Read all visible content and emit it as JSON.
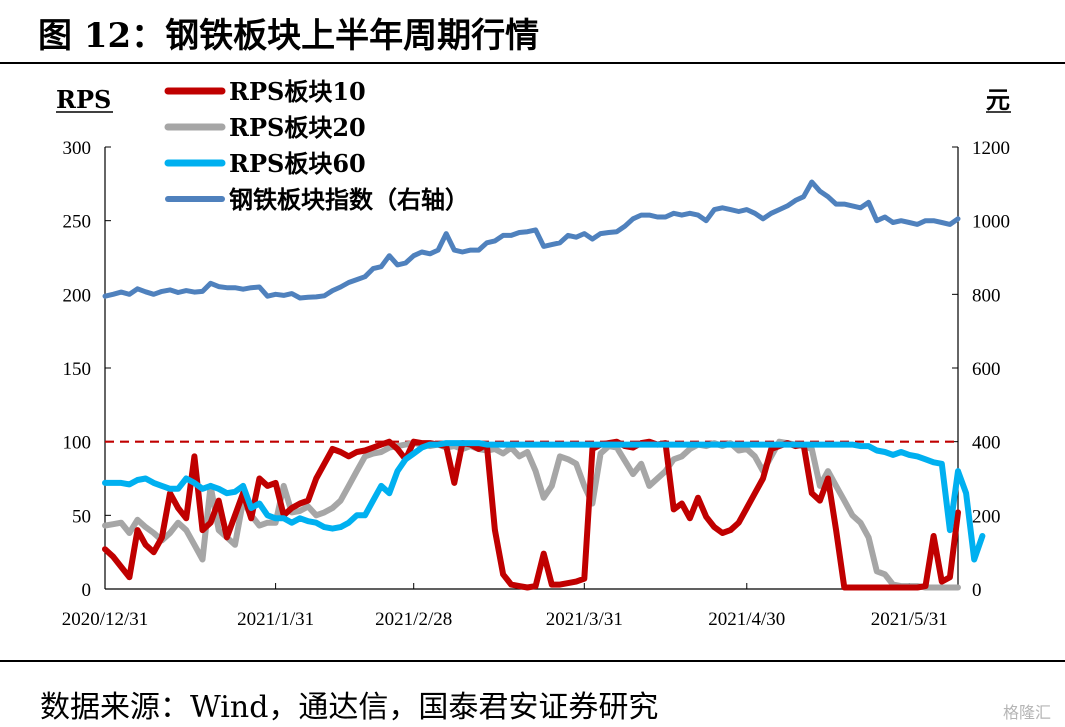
{
  "figure_title": "图 12：钢铁板块上半年周期行情",
  "source_note": "数据来源：Wind，通达信，国泰君安证券研究",
  "watermark": "格隆汇",
  "chart_data": {
    "type": "line",
    "title": "图 12：钢铁板块上半年周期行情",
    "left_axis_unit": "RPS",
    "right_axis_unit": "元",
    "left_ylim": [
      0,
      300
    ],
    "right_ylim": [
      0,
      1200
    ],
    "left_ticks": [
      "0",
      "50",
      "100",
      "150",
      "200",
      "250",
      "300"
    ],
    "right_ticks": [
      "0",
      "200",
      "400",
      "600",
      "800",
      "1000",
      "1200"
    ],
    "x_ticks": [
      "2020/12/31",
      "2021/1/31",
      "2021/2/28",
      "2021/3/31",
      "2021/4/30",
      "2021/5/31"
    ],
    "x_tick_index": [
      0,
      21,
      38,
      59,
      79,
      99
    ],
    "n_points": 106,
    "reference_line": {
      "value": 100,
      "axis": "left",
      "color": "#c00000",
      "style": "dashed"
    },
    "legend_position": "top-left",
    "grid": false,
    "series": [
      {
        "name": "RPS板块10",
        "axis": "left",
        "color": "#c00000",
        "width": 6,
        "values": [
          27,
          22,
          15,
          8,
          40,
          30,
          25,
          35,
          65,
          55,
          48,
          90,
          40,
          45,
          60,
          35,
          50,
          65,
          48,
          75,
          70,
          72,
          50,
          55,
          58,
          60,
          75,
          85,
          95,
          93,
          90,
          93,
          94,
          96,
          98,
          100,
          95,
          88,
          100,
          99,
          99,
          98,
          97,
          72,
          99,
          98,
          95,
          98,
          40,
          10,
          3,
          2,
          1,
          2,
          24,
          3,
          3,
          4,
          5,
          7,
          95,
          98,
          99,
          100,
          97,
          96,
          99,
          100,
          98,
          99,
          54,
          58,
          48,
          62,
          49,
          42,
          38,
          40,
          45,
          55,
          65,
          75,
          95,
          97,
          99,
          97,
          98,
          65,
          60,
          75,
          40,
          1,
          1,
          1,
          1,
          1,
          1,
          1,
          1,
          1,
          1,
          2,
          36,
          5,
          8,
          52
        ]
      },
      {
        "name": "RPS板块20",
        "axis": "left",
        "color": "#a6a6a6",
        "width": 6,
        "values": [
          43,
          44,
          45,
          38,
          47,
          42,
          38,
          33,
          38,
          45,
          40,
          30,
          20,
          70,
          40,
          35,
          30,
          60,
          50,
          43,
          45,
          45,
          70,
          52,
          53,
          56,
          50,
          52,
          55,
          60,
          70,
          80,
          90,
          92,
          93,
          96,
          97,
          98,
          99,
          98,
          97,
          98,
          96,
          97,
          95,
          97,
          95,
          94,
          95,
          92,
          96,
          90,
          93,
          80,
          62,
          70,
          90,
          88,
          85,
          70,
          58,
          92,
          97,
          96,
          87,
          78,
          85,
          70,
          75,
          80,
          88,
          90,
          95,
          98,
          97,
          99,
          97,
          99,
          94,
          95,
          90,
          80,
          90,
          100,
          99,
          98,
          97,
          95,
          70,
          80,
          70,
          60,
          50,
          45,
          35,
          12,
          10,
          3,
          2,
          2,
          2,
          1,
          1,
          1,
          1,
          1
        ]
      },
      {
        "name": "RPS板块60",
        "axis": "left",
        "color": "#00b0f0",
        "width": 6,
        "values": [
          72,
          72,
          72,
          71,
          74,
          75,
          72,
          70,
          68,
          68,
          75,
          72,
          68,
          70,
          68,
          65,
          66,
          70,
          55,
          58,
          50,
          48,
          48,
          45,
          48,
          46,
          45,
          42,
          41,
          42,
          45,
          50,
          50,
          60,
          70,
          65,
          80,
          88,
          92,
          96,
          98,
          98,
          99,
          99,
          99,
          99,
          99,
          98,
          98,
          98,
          98,
          98,
          98,
          98,
          98,
          98,
          98,
          98,
          98,
          98,
          98,
          98,
          98,
          98,
          98,
          98,
          98,
          98,
          98,
          98,
          98,
          98,
          98,
          98,
          98,
          98,
          98,
          98,
          98,
          98,
          98,
          98,
          98,
          98,
          98,
          98,
          98,
          98,
          98,
          98,
          98,
          98,
          98,
          97,
          97,
          94,
          93,
          91,
          93,
          91,
          90,
          88,
          86,
          85,
          40,
          80,
          65,
          20,
          36
        ]
      },
      {
        "name": "钢铁板块指数（右轴）",
        "axis": "right",
        "color": "#4f81bd",
        "width": 5,
        "values": [
          795,
          800,
          806,
          800,
          815,
          807,
          800,
          808,
          812,
          805,
          810,
          806,
          808,
          830,
          821,
          818,
          818,
          814,
          818,
          820,
          795,
          800,
          797,
          802,
          790,
          792,
          793,
          796,
          810,
          820,
          832,
          840,
          848,
          870,
          875,
          905,
          880,
          885,
          905,
          915,
          910,
          920,
          965,
          920,
          915,
          920,
          920,
          940,
          945,
          960,
          960,
          968,
          970,
          975,
          930,
          935,
          940,
          960,
          955,
          965,
          950,
          965,
          968,
          970,
          985,
          1005,
          1015,
          1015,
          1010,
          1010,
          1020,
          1015,
          1020,
          1015,
          1000,
          1030,
          1035,
          1030,
          1025,
          1030,
          1020,
          1005,
          1020,
          1030,
          1040,
          1055,
          1065,
          1105,
          1080,
          1065,
          1045,
          1045,
          1040,
          1035,
          1050,
          1000,
          1010,
          995,
          1000,
          995,
          990,
          1000,
          1000,
          995,
          990,
          1005
        ]
      }
    ]
  }
}
